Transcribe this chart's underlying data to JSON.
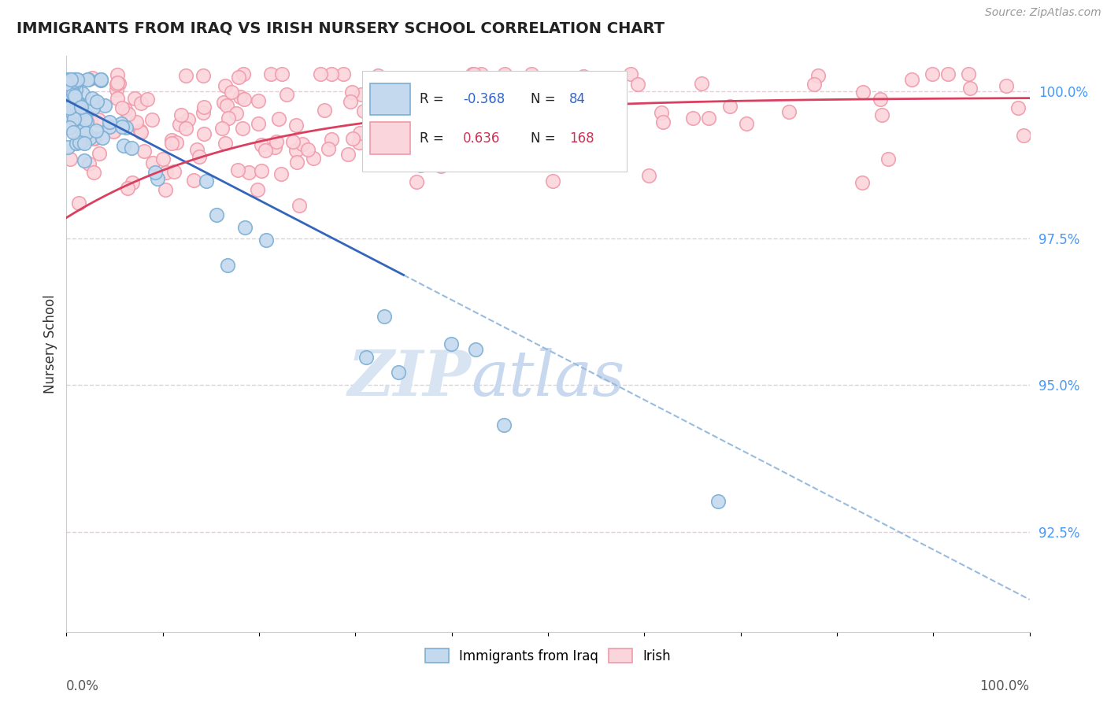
{
  "title": "IMMIGRANTS FROM IRAQ VS IRISH NURSERY SCHOOL CORRELATION CHART",
  "source": "Source: ZipAtlas.com",
  "ylabel": "Nursery School",
  "ylabel_right_labels": [
    "100.0%",
    "97.5%",
    "95.0%",
    "92.5%"
  ],
  "ylabel_right_values": [
    1.0,
    0.975,
    0.95,
    0.925
  ],
  "legend_labels": [
    "Immigrants from Iraq",
    "Irish"
  ],
  "legend_r_blue": "-0.368",
  "legend_n_blue": "84",
  "legend_r_pink": "0.636",
  "legend_n_pink": "168",
  "blue_edge_color": "#7BAFD4",
  "pink_edge_color": "#F09AAA",
  "blue_face_color": "#C5D9EE",
  "pink_face_color": "#FBD5DC",
  "blue_line_color": "#3366BB",
  "pink_line_color": "#D94060",
  "blue_dash_color": "#99BBDD",
  "watermark_zip": "ZIP",
  "watermark_atlas": "atlas",
  "watermark_color_zip": "#D0DCF0",
  "watermark_color_atlas": "#D0DCF0",
  "background_color": "#FFFFFF",
  "grid_color": "#E0D0D8",
  "xmin": 0.0,
  "xmax": 1.0,
  "ymin": 0.908,
  "ymax": 1.006,
  "blue_r": -0.368,
  "blue_n": 84,
  "pink_r": 0.636,
  "pink_n": 168
}
